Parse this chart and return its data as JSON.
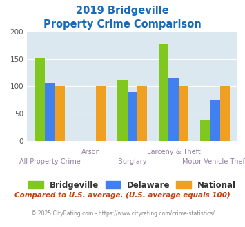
{
  "title_line1": "2019 Bridgeville",
  "title_line2": "Property Crime Comparison",
  "categories": [
    "All Property Crime",
    "Arson",
    "Burglary",
    "Larceny & Theft",
    "Motor Vehicle Theft"
  ],
  "bridgeville": [
    152,
    0,
    110,
    178,
    38
  ],
  "delaware": [
    107,
    0,
    89,
    115,
    75
  ],
  "national": [
    100,
    100,
    100,
    100,
    100
  ],
  "color_bridgeville": "#80c820",
  "color_delaware": "#4080f0",
  "color_national": "#f0a020",
  "color_title": "#1a6ab5",
  "color_bg_plot": "#dce8f0",
  "color_label": "#9080a0",
  "ylim": [
    0,
    200
  ],
  "yticks": [
    0,
    50,
    100,
    150,
    200
  ],
  "footnote1": "Compared to U.S. average. (U.S. average equals 100)",
  "footnote2": "© 2025 CityRating.com - https://www.cityrating.com/crime-statistics/",
  "legend_labels": [
    "Bridgeville",
    "Delaware",
    "National"
  ],
  "bar_width": 0.24
}
